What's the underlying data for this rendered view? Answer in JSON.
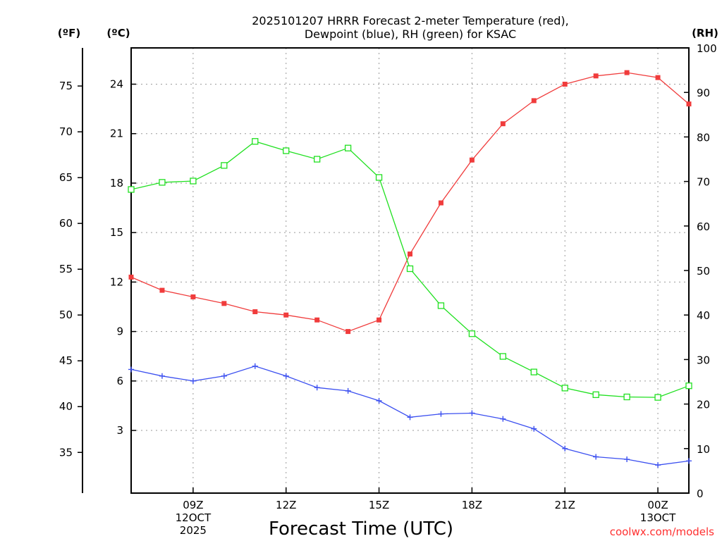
{
  "chart_data": {
    "type": "line",
    "title": [
      "2025101207 HRRR Forecast 2-meter Temperature (red),",
      "Dewpoint (blue), RH (green) for KSAC"
    ],
    "xlabel": "Forecast Time (UTC)",
    "credit": "coolwx.com/models",
    "x": [
      "07Z",
      "08Z",
      "09Z",
      "10Z",
      "11Z",
      "12Z",
      "13Z",
      "14Z",
      "15Z",
      "16Z",
      "17Z",
      "18Z",
      "19Z",
      "20Z",
      "21Z",
      "22Z",
      "23Z",
      "00Z",
      "01Z"
    ],
    "x_tick_labels": [
      {
        "hour": "09Z",
        "lines": [
          "09Z",
          "12OCT",
          "2025"
        ]
      },
      {
        "hour": "12Z",
        "lines": [
          "12Z"
        ]
      },
      {
        "hour": "15Z",
        "lines": [
          "15Z"
        ]
      },
      {
        "hour": "18Z",
        "lines": [
          "18Z"
        ]
      },
      {
        "hour": "21Z",
        "lines": [
          "21Z"
        ]
      },
      {
        "hour": "00Z",
        "lines": [
          "00Z",
          "13OCT"
        ]
      }
    ],
    "axes": {
      "celsius": {
        "unit_label": "(ºC)",
        "range": [
          -0.8,
          26.2
        ],
        "ticks": [
          3,
          6,
          9,
          12,
          15,
          18,
          21,
          24
        ]
      },
      "fahrenheit": {
        "unit_label": "(ºF)",
        "ticks": [
          35,
          40,
          45,
          50,
          55,
          60,
          65,
          70,
          75
        ]
      },
      "rh": {
        "unit_label": "(RH)",
        "range": [
          0,
          100
        ],
        "ticks": [
          0,
          10,
          20,
          30,
          40,
          50,
          60,
          70,
          80,
          90,
          100
        ]
      }
    },
    "grid": true,
    "series": [
      {
        "name": "Temperature",
        "unit": "C",
        "axis": "celsius",
        "color": "#f03c3c",
        "marker": "filled-square",
        "values": [
          12.3,
          11.5,
          11.1,
          10.7,
          10.2,
          10.0,
          9.7,
          9.0,
          9.7,
          13.7,
          16.8,
          19.4,
          21.6,
          23.0,
          24.0,
          24.5,
          24.7,
          24.4,
          22.8
        ]
      },
      {
        "name": "Dewpoint",
        "unit": "C",
        "axis": "celsius",
        "color": "#3c50f0",
        "marker": "plus",
        "values": [
          6.7,
          6.3,
          6.0,
          6.3,
          6.9,
          6.3,
          5.6,
          5.4,
          4.8,
          3.8,
          4.0,
          4.05,
          3.7,
          3.1,
          1.9,
          1.4,
          1.25,
          0.9,
          1.15
        ]
      },
      {
        "name": "RH",
        "unit": "%",
        "axis": "rh",
        "color": "#20e020",
        "marker": "open-square",
        "values": [
          68.2,
          69.8,
          70.1,
          73.6,
          79.0,
          76.9,
          75.0,
          77.5,
          70.9,
          50.4,
          42.1,
          35.8,
          30.7,
          27.2,
          23.6,
          22.1,
          21.6,
          21.5,
          24.1
        ]
      }
    ]
  }
}
